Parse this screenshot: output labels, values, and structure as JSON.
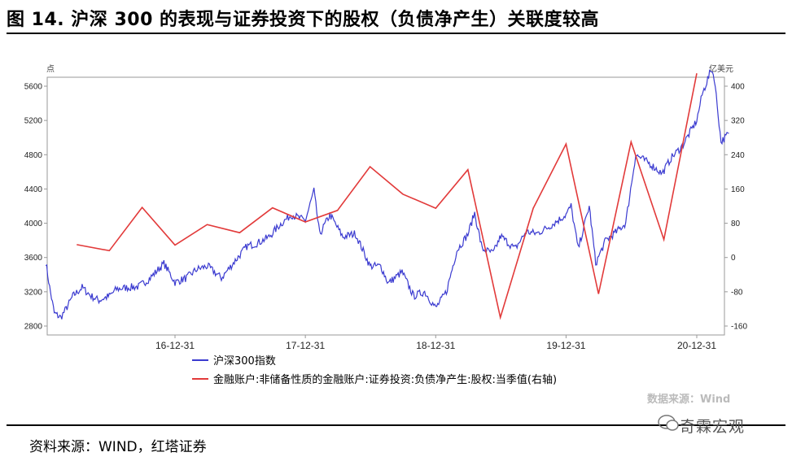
{
  "header": {
    "title": "图 14. 沪深 300 的表现与证券投资下的股权（负债净产生）关联度较高"
  },
  "footer": {
    "source": "资料来源：WIND，红塔证券",
    "brand": "奇霖宏观"
  },
  "chart_data": {
    "type": "line",
    "title": "",
    "left_axis": {
      "unit": "点",
      "min": 2800,
      "max": 5600,
      "ticks": [
        2800,
        3200,
        3600,
        4000,
        4400,
        4800,
        5200,
        5600
      ]
    },
    "right_axis": {
      "unit": "亿美元",
      "min": -160,
      "max": 400,
      "ticks": [
        -160,
        -80,
        0,
        80,
        160,
        240,
        320,
        400
      ]
    },
    "x_ticks": [
      "16-12-31",
      "17-12-31",
      "18-12-31",
      "19-12-31",
      "20-12-31"
    ],
    "watermark": "数据来源：Wind",
    "colors": {
      "index": "#3b3bd0",
      "equity": "#e23a3a"
    },
    "series": [
      {
        "name": "沪深300指数",
        "axis": "left",
        "points": [
          [
            "2016-01-04",
            3550
          ],
          [
            "2016-01-15",
            3250
          ],
          [
            "2016-01-28",
            2950
          ],
          [
            "2016-02-15",
            2900
          ],
          [
            "2016-03-01",
            3000
          ],
          [
            "2016-03-20",
            3150
          ],
          [
            "2016-04-15",
            3250
          ],
          [
            "2016-05-10",
            3150
          ],
          [
            "2016-06-01",
            3100
          ],
          [
            "2016-06-30",
            3150
          ],
          [
            "2016-07-20",
            3230
          ],
          [
            "2016-08-20",
            3250
          ],
          [
            "2016-09-20",
            3260
          ],
          [
            "2016-10-20",
            3350
          ],
          [
            "2016-11-30",
            3530
          ],
          [
            "2016-12-31",
            3310
          ],
          [
            "2017-02-01",
            3360
          ],
          [
            "2017-03-01",
            3460
          ],
          [
            "2017-04-01",
            3500
          ],
          [
            "2017-05-10",
            3360
          ],
          [
            "2017-06-15",
            3550
          ],
          [
            "2017-07-20",
            3730
          ],
          [
            "2017-08-20",
            3770
          ],
          [
            "2017-09-20",
            3840
          ],
          [
            "2017-10-20",
            3980
          ],
          [
            "2017-11-22",
            4100
          ],
          [
            "2017-12-31",
            4030
          ],
          [
            "2018-01-24",
            4380
          ],
          [
            "2018-02-09",
            3870
          ],
          [
            "2018-03-10",
            4100
          ],
          [
            "2018-04-15",
            3840
          ],
          [
            "2018-05-20",
            3880
          ],
          [
            "2018-06-30",
            3500
          ],
          [
            "2018-07-30",
            3500
          ],
          [
            "2018-08-20",
            3300
          ],
          [
            "2018-09-28",
            3430
          ],
          [
            "2018-10-30",
            3150
          ],
          [
            "2018-11-30",
            3200
          ],
          [
            "2018-12-31",
            3010
          ],
          [
            "2019-01-30",
            3200
          ],
          [
            "2019-02-28",
            3680
          ],
          [
            "2019-03-31",
            3870
          ],
          [
            "2019-04-19",
            4120
          ],
          [
            "2019-05-10",
            3700
          ],
          [
            "2019-06-10",
            3650
          ],
          [
            "2019-07-01",
            3850
          ],
          [
            "2019-08-10",
            3700
          ],
          [
            "2019-09-10",
            3900
          ],
          [
            "2019-10-10",
            3880
          ],
          [
            "2019-11-10",
            3950
          ],
          [
            "2019-12-31",
            4100
          ],
          [
            "2020-01-14",
            4200
          ],
          [
            "2020-02-03",
            3700
          ],
          [
            "2020-03-05",
            4200
          ],
          [
            "2020-03-23",
            3530
          ],
          [
            "2020-04-20",
            3800
          ],
          [
            "2020-05-20",
            3900
          ],
          [
            "2020-06-15",
            4000
          ],
          [
            "2020-07-13",
            4800
          ],
          [
            "2020-08-20",
            4700
          ],
          [
            "2020-09-25",
            4580
          ],
          [
            "2020-10-20",
            4760
          ],
          [
            "2020-11-20",
            4900
          ],
          [
            "2020-12-31",
            5200
          ],
          [
            "2021-01-15",
            5500
          ],
          [
            "2021-02-10",
            5800
          ],
          [
            "2021-02-18",
            5700
          ],
          [
            "2021-03-09",
            4950
          ],
          [
            "2021-03-31",
            5050
          ]
        ]
      },
      {
        "name": "金融账户:非储备性质的金融账户:证券投资:负债净产生:股权:当季值(右轴)",
        "axis": "right",
        "points": [
          [
            "2016-03-31",
            30
          ],
          [
            "2016-06-30",
            16
          ],
          [
            "2016-09-30",
            117
          ],
          [
            "2016-12-31",
            29
          ],
          [
            "2017-03-31",
            77
          ],
          [
            "2017-06-30",
            58
          ],
          [
            "2017-09-30",
            116
          ],
          [
            "2017-12-31",
            83
          ],
          [
            "2018-03-31",
            110
          ],
          [
            "2018-06-30",
            212
          ],
          [
            "2018-09-30",
            148
          ],
          [
            "2018-12-31",
            115
          ],
          [
            "2019-03-31",
            205
          ],
          [
            "2019-06-30",
            -140
          ],
          [
            "2019-09-30",
            115
          ],
          [
            "2019-12-31",
            265
          ],
          [
            "2020-03-31",
            -85
          ],
          [
            "2020-06-30",
            270
          ],
          [
            "2020-09-30",
            42
          ],
          [
            "2020-12-31",
            430
          ]
        ]
      }
    ]
  }
}
